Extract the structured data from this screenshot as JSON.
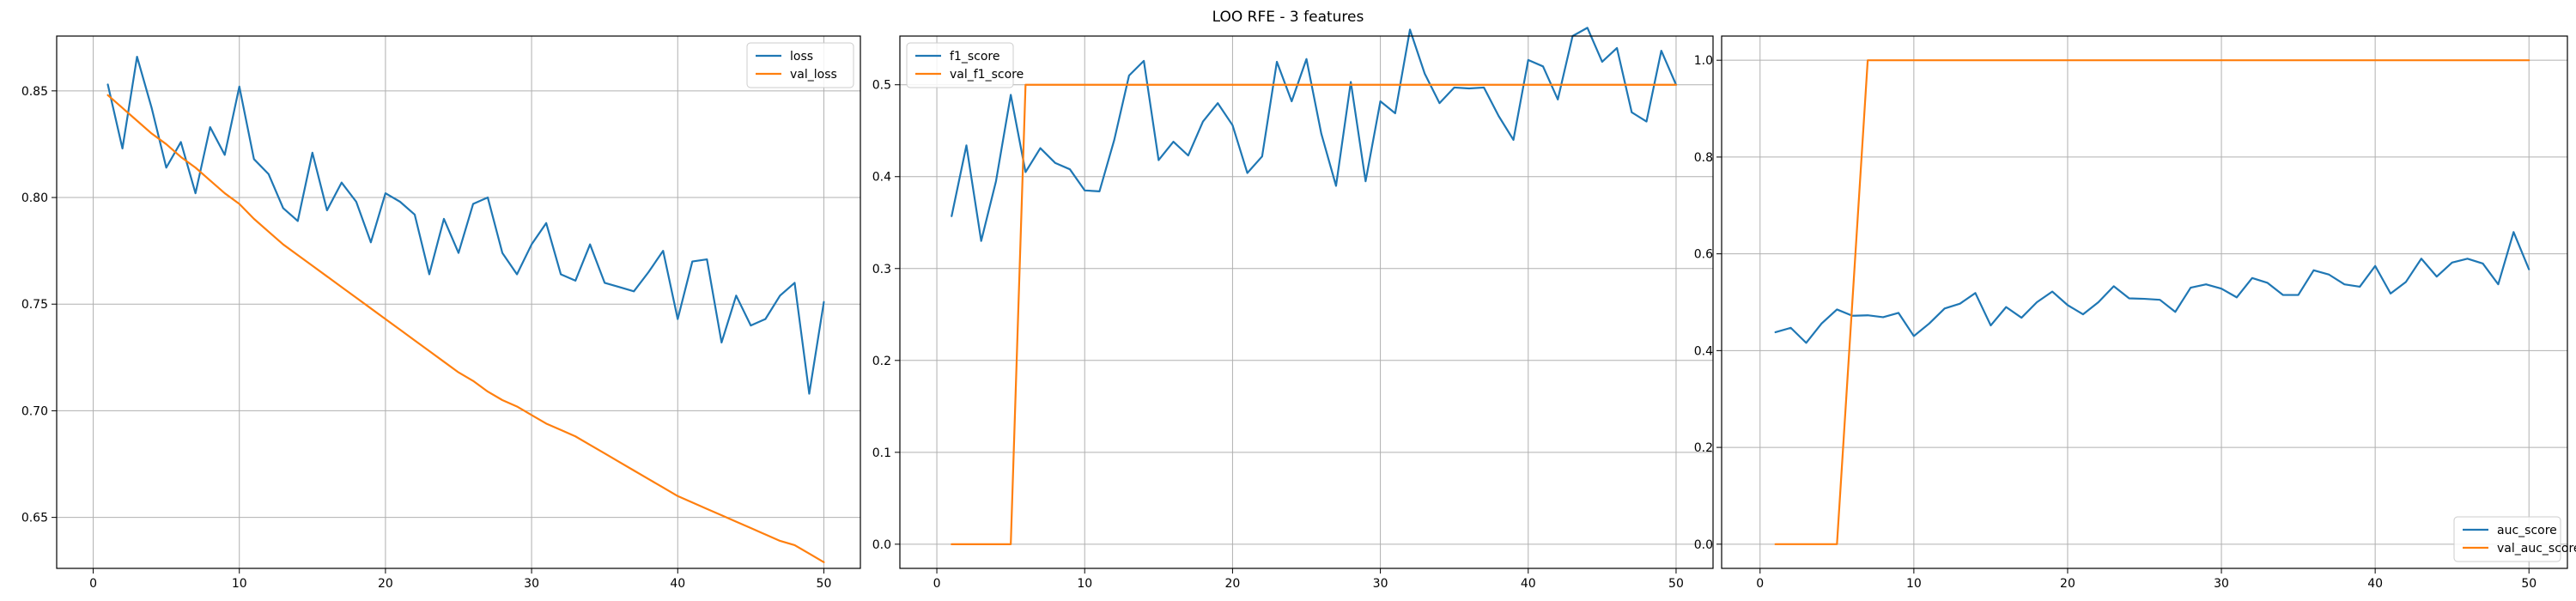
{
  "suptitle": "LOO RFE - 3 features",
  "colors": {
    "blue": "#1f77b4",
    "orange": "#ff7f0e",
    "grid": "#b0b0b0"
  },
  "chart_data": [
    {
      "type": "line",
      "title": "",
      "xlabel": "",
      "ylabel": "",
      "xlim": [
        -2.5,
        52.5
      ],
      "ylim": [
        0.6261,
        0.8757
      ],
      "xticks": [
        0,
        10,
        20,
        30,
        40,
        50
      ],
      "yticks": [
        0.65,
        0.7,
        0.75,
        0.8,
        0.85
      ],
      "ytick_labels": [
        "0.65",
        "0.70",
        "0.75",
        "0.80",
        "0.85"
      ],
      "grid": true,
      "legend_position": "top-right",
      "x": [
        1,
        2,
        3,
        4,
        5,
        6,
        7,
        8,
        9,
        10,
        11,
        12,
        13,
        14,
        15,
        16,
        17,
        18,
        19,
        20,
        21,
        22,
        23,
        24,
        25,
        26,
        27,
        28,
        29,
        30,
        31,
        32,
        33,
        34,
        35,
        36,
        37,
        38,
        39,
        40,
        41,
        42,
        43,
        44,
        45,
        46,
        47,
        48,
        49,
        50
      ],
      "series": [
        {
          "name": "loss",
          "color": "#1f77b4",
          "values": [
            0.853,
            0.823,
            0.866,
            0.842,
            0.814,
            0.826,
            0.802,
            0.833,
            0.82,
            0.852,
            0.818,
            0.811,
            0.795,
            0.789,
            0.821,
            0.794,
            0.807,
            0.798,
            0.779,
            0.802,
            0.798,
            0.792,
            0.764,
            0.79,
            0.774,
            0.797,
            0.8,
            0.774,
            0.764,
            0.778,
            0.788,
            0.764,
            0.761,
            0.778,
            0.76,
            0.758,
            0.756,
            0.765,
            0.775,
            0.743,
            0.77,
            0.771,
            0.732,
            0.754,
            0.74,
            0.743,
            0.754,
            0.76,
            0.708,
            0.751
          ]
        },
        {
          "name": "val_loss",
          "color": "#ff7f0e",
          "values": [
            0.848,
            0.842,
            0.836,
            0.83,
            0.825,
            0.819,
            0.814,
            0.808,
            0.802,
            0.797,
            0.79,
            0.784,
            0.778,
            0.773,
            0.768,
            0.763,
            0.758,
            0.753,
            0.748,
            0.743,
            0.738,
            0.733,
            0.728,
            0.723,
            0.718,
            0.714,
            0.709,
            0.705,
            0.702,
            0.698,
            0.694,
            0.691,
            0.688,
            0.684,
            0.68,
            0.676,
            0.672,
            0.668,
            0.664,
            0.66,
            0.657,
            0.654,
            0.651,
            0.648,
            0.645,
            0.642,
            0.639,
            0.637,
            0.633,
            0.629
          ]
        }
      ]
    },
    {
      "type": "line",
      "title": "",
      "xlabel": "",
      "ylabel": "",
      "xlim": [
        -2.5,
        52.5
      ],
      "ylim": [
        -0.0263,
        0.553
      ],
      "xticks": [
        0,
        10,
        20,
        30,
        40,
        50
      ],
      "yticks": [
        0.0,
        0.1,
        0.2,
        0.3,
        0.4,
        0.5
      ],
      "ytick_labels": [
        "0.0",
        "0.1",
        "0.2",
        "0.3",
        "0.4",
        "0.5"
      ],
      "grid": true,
      "legend_position": "top-left",
      "x": [
        1,
        2,
        3,
        4,
        5,
        6,
        7,
        8,
        9,
        10,
        11,
        12,
        13,
        14,
        15,
        16,
        17,
        18,
        19,
        20,
        21,
        22,
        23,
        24,
        25,
        26,
        27,
        28,
        29,
        30,
        31,
        32,
        33,
        34,
        35,
        36,
        37,
        38,
        39,
        40,
        41,
        42,
        43,
        44,
        45,
        46,
        47,
        48,
        49,
        50
      ],
      "series": [
        {
          "name": "f1_score",
          "color": "#1f77b4",
          "values": [
            0.357,
            0.434,
            0.33,
            0.395,
            0.489,
            0.405,
            0.431,
            0.415,
            0.408,
            0.385,
            0.384,
            0.44,
            0.51,
            0.526,
            0.418,
            0.438,
            0.423,
            0.46,
            0.48,
            0.456,
            0.404,
            0.422,
            0.525,
            0.482,
            0.528,
            0.447,
            0.39,
            0.503,
            0.395,
            0.482,
            0.469,
            0.56,
            0.512,
            0.48,
            0.497,
            0.496,
            0.497,
            0.466,
            0.44,
            0.527,
            0.52,
            0.484,
            0.553,
            0.562,
            0.525,
            0.54,
            0.47,
            0.46,
            0.537,
            0.5
          ]
        },
        {
          "name": "val_f1_score",
          "color": "#ff7f0e",
          "values": [
            0.0,
            0.0,
            0.0,
            0.0,
            0.0,
            0.5,
            0.5,
            0.5,
            0.5,
            0.5,
            0.5,
            0.5,
            0.5,
            0.5,
            0.5,
            0.5,
            0.5,
            0.5,
            0.5,
            0.5,
            0.5,
            0.5,
            0.5,
            0.5,
            0.5,
            0.5,
            0.5,
            0.5,
            0.5,
            0.5,
            0.5,
            0.5,
            0.5,
            0.5,
            0.5,
            0.5,
            0.5,
            0.5,
            0.5,
            0.5,
            0.5,
            0.5,
            0.5,
            0.5,
            0.5,
            0.5,
            0.5,
            0.5,
            0.5,
            0.5
          ]
        }
      ]
    },
    {
      "type": "line",
      "title": "",
      "xlabel": "",
      "ylabel": "",
      "xlim": [
        -2.5,
        52.5
      ],
      "ylim": [
        -0.05,
        1.05
      ],
      "xticks": [
        0,
        10,
        20,
        30,
        40,
        50
      ],
      "yticks": [
        0.0,
        0.2,
        0.4,
        0.6,
        0.8,
        1.0
      ],
      "ytick_labels": [
        "0.0",
        "0.2",
        "0.4",
        "0.6",
        "0.8",
        "1.0"
      ],
      "grid": true,
      "legend_position": "bottom-right",
      "x": [
        1,
        2,
        3,
        4,
        5,
        6,
        7,
        8,
        9,
        10,
        11,
        12,
        13,
        14,
        15,
        16,
        17,
        18,
        19,
        20,
        21,
        22,
        23,
        24,
        25,
        26,
        27,
        28,
        29,
        30,
        31,
        32,
        33,
        34,
        35,
        36,
        37,
        38,
        39,
        40,
        41,
        42,
        43,
        44,
        45,
        46,
        47,
        48,
        49,
        50
      ],
      "series": [
        {
          "name": "auc_score",
          "color": "#1f77b4",
          "values": [
            0.438,
            0.447,
            0.416,
            0.456,
            0.485,
            0.472,
            0.473,
            0.469,
            0.478,
            0.43,
            0.456,
            0.487,
            0.497,
            0.519,
            0.452,
            0.49,
            0.468,
            0.5,
            0.522,
            0.494,
            0.475,
            0.5,
            0.533,
            0.508,
            0.507,
            0.505,
            0.48,
            0.53,
            0.537,
            0.528,
            0.51,
            0.55,
            0.54,
            0.515,
            0.515,
            0.566,
            0.557,
            0.537,
            0.532,
            0.575,
            0.518,
            0.542,
            0.59,
            0.553,
            0.582,
            0.59,
            0.58,
            0.537,
            0.645,
            0.568
          ]
        },
        {
          "name": "val_auc_score",
          "color": "#ff7f0e",
          "values": [
            0.0,
            0.0,
            0.0,
            0.0,
            0.0,
            0.5,
            1.0,
            1.0,
            1.0,
            1.0,
            1.0,
            1.0,
            1.0,
            1.0,
            1.0,
            1.0,
            1.0,
            1.0,
            1.0,
            1.0,
            1.0,
            1.0,
            1.0,
            1.0,
            1.0,
            1.0,
            1.0,
            1.0,
            1.0,
            1.0,
            1.0,
            1.0,
            1.0,
            1.0,
            1.0,
            1.0,
            1.0,
            1.0,
            1.0,
            1.0,
            1.0,
            1.0,
            1.0,
            1.0,
            1.0,
            1.0,
            1.0,
            1.0,
            1.0,
            1.0
          ]
        }
      ]
    }
  ]
}
